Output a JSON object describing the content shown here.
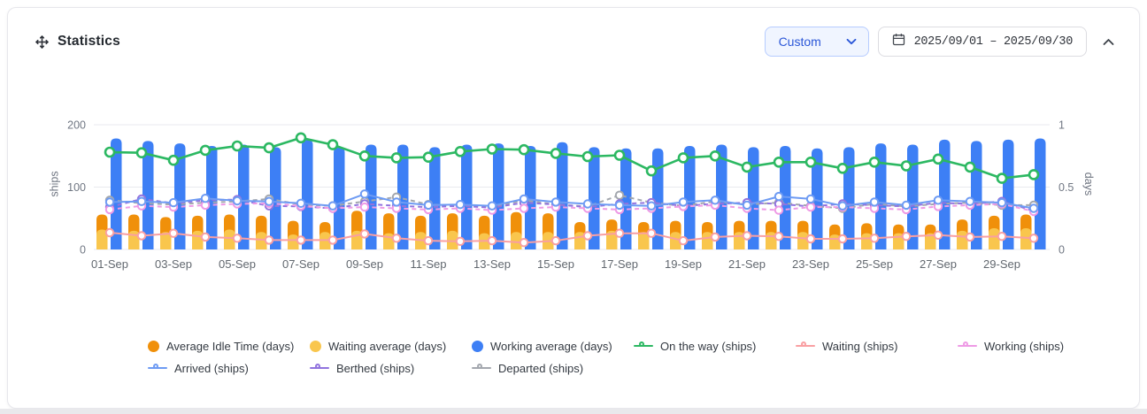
{
  "header": {
    "title": "Statistics",
    "preset_selected": "Custom",
    "date_range": "2025/09/01 – 2025/09/30"
  },
  "chart": {
    "left_axis": {
      "label": "ships",
      "ticks": [
        0,
        100,
        200
      ],
      "range": [
        0,
        200
      ]
    },
    "right_axis": {
      "label": "days",
      "ticks": [
        0,
        0.5,
        1
      ],
      "range": [
        0,
        1
      ]
    }
  },
  "chart_data": {
    "type": "bar+line",
    "title": "",
    "categories": [
      "01-Sep",
      "02-Sep",
      "03-Sep",
      "04-Sep",
      "05-Sep",
      "06-Sep",
      "07-Sep",
      "08-Sep",
      "09-Sep",
      "10-Sep",
      "11-Sep",
      "12-Sep",
      "13-Sep",
      "14-Sep",
      "15-Sep",
      "16-Sep",
      "17-Sep",
      "18-Sep",
      "19-Sep",
      "20-Sep",
      "21-Sep",
      "22-Sep",
      "23-Sep",
      "24-Sep",
      "25-Sep",
      "26-Sep",
      "27-Sep",
      "28-Sep",
      "29-Sep",
      "30-Sep"
    ],
    "x_label_step": 2,
    "left_ylim": [
      0,
      200
    ],
    "right_ylim": [
      0,
      1
    ],
    "grid": true,
    "legend_position": "bottom",
    "series": [
      {
        "name": "Average Idle Time (days)",
        "type": "bar",
        "axis": "right",
        "color": "#f0900a",
        "values": [
          0.28,
          0.28,
          0.26,
          0.27,
          0.28,
          0.27,
          0.23,
          0.22,
          0.31,
          0.29,
          0.27,
          0.29,
          0.27,
          0.3,
          0.29,
          0.22,
          0.24,
          0.22,
          0.23,
          0.22,
          0.23,
          0.23,
          0.23,
          0.2,
          0.21,
          0.2,
          0.2,
          0.24,
          0.27,
          0.28
        ]
      },
      {
        "name": "Waiting average (days)",
        "type": "bar",
        "axis": "right",
        "color": "#f9c64d",
        "values": [
          0.16,
          0.15,
          0.14,
          0.15,
          0.16,
          0.14,
          0.12,
          0.14,
          0.15,
          0.13,
          0.14,
          0.15,
          0.13,
          0.14,
          0.14,
          0.14,
          0.15,
          0.14,
          0.14,
          0.14,
          0.14,
          0.14,
          0.14,
          0.12,
          0.13,
          0.13,
          0.13,
          0.15,
          0.17,
          0.17
        ]
      },
      {
        "name": "Working average (days)",
        "type": "bar",
        "axis": "right",
        "color": "#3d7ff5",
        "values": [
          0.89,
          0.87,
          0.85,
          0.83,
          0.84,
          0.82,
          0.88,
          0.82,
          0.84,
          0.84,
          0.82,
          0.84,
          0.85,
          0.83,
          0.86,
          0.82,
          0.81,
          0.81,
          0.83,
          0.84,
          0.82,
          0.83,
          0.81,
          0.82,
          0.85,
          0.84,
          0.88,
          0.87,
          0.88,
          0.89
        ]
      },
      {
        "name": "On the way (ships)",
        "type": "line",
        "axis": "left",
        "color": "#2cb862",
        "dash": false,
        "values": [
          156,
          155,
          143,
          159,
          166,
          163,
          179,
          168,
          150,
          147,
          148,
          157,
          161,
          160,
          154,
          149,
          151,
          126,
          147,
          150,
          132,
          140,
          140,
          130,
          140,
          134,
          145,
          132,
          114,
          120
        ]
      },
      {
        "name": "Waiting (ships)",
        "type": "line",
        "axis": "left",
        "color": "#f99fa2",
        "dash": false,
        "values": [
          27,
          22,
          26,
          20,
          18,
          15,
          15,
          15,
          25,
          18,
          14,
          13,
          14,
          11,
          14,
          22,
          26,
          26,
          14,
          20,
          22,
          21,
          17,
          17,
          18,
          21,
          23,
          20,
          21,
          18
        ]
      },
      {
        "name": "Working (ships)",
        "type": "line",
        "axis": "left",
        "color": "#ee9ae5",
        "dash": true,
        "values": [
          64,
          70,
          68,
          71,
          73,
          74,
          70,
          66,
          68,
          66,
          64,
          66,
          63,
          66,
          68,
          66,
          64,
          66,
          69,
          71,
          66,
          63,
          68,
          68,
          66,
          64,
          69,
          71,
          73,
          61
        ]
      },
      {
        "name": "Arrived (ships)",
        "type": "line",
        "axis": "left",
        "color": "#6e9bf3",
        "dash": false,
        "values": [
          76,
          77,
          75,
          82,
          78,
          77,
          74,
          70,
          89,
          76,
          71,
          72,
          70,
          81,
          76,
          73,
          71,
          70,
          76,
          79,
          71,
          85,
          81,
          70,
          76,
          71,
          79,
          77,
          75,
          66
        ]
      },
      {
        "name": "Berthed (ships)",
        "type": "line",
        "axis": "left",
        "color": "#9173de",
        "dash": true,
        "values": [
          68,
          81,
          74,
          79,
          80,
          70,
          69,
          66,
          73,
          70,
          68,
          70,
          67,
          75,
          72,
          68,
          73,
          75,
          70,
          73,
          75,
          73,
          69,
          73,
          71,
          69,
          75,
          73,
          77,
          62
        ]
      },
      {
        "name": "Departed (ships)",
        "type": "line",
        "axis": "left",
        "color": "#a3a7ae",
        "dash": true,
        "values": [
          79,
          74,
          72,
          75,
          77,
          81,
          72,
          70,
          77,
          84,
          72,
          70,
          68,
          79,
          72,
          69,
          87,
          75,
          70,
          77,
          72,
          75,
          70,
          66,
          73,
          69,
          73,
          75,
          71,
          71
        ]
      }
    ]
  },
  "legend": {
    "items": [
      {
        "label": "Average Idle Time (days)",
        "marker": "dot",
        "color": "#f0900a"
      },
      {
        "label": "Waiting average (days)",
        "marker": "dot",
        "color": "#f9c64d"
      },
      {
        "label": "Working average (days)",
        "marker": "dot",
        "color": "#3d7ff5"
      },
      {
        "label": "On the way (ships)",
        "marker": "line",
        "color": "#2cb862"
      },
      {
        "label": "Waiting (ships)",
        "marker": "line",
        "color": "#f99fa2"
      },
      {
        "label": "Working (ships)",
        "marker": "line",
        "color": "#ee9ae5"
      },
      {
        "label": "Arrived (ships)",
        "marker": "line",
        "color": "#6e9bf3"
      },
      {
        "label": "Berthed (ships)",
        "marker": "line",
        "color": "#9173de"
      },
      {
        "label": "Departed (ships)",
        "marker": "line",
        "color": "#a3a7ae"
      }
    ]
  }
}
